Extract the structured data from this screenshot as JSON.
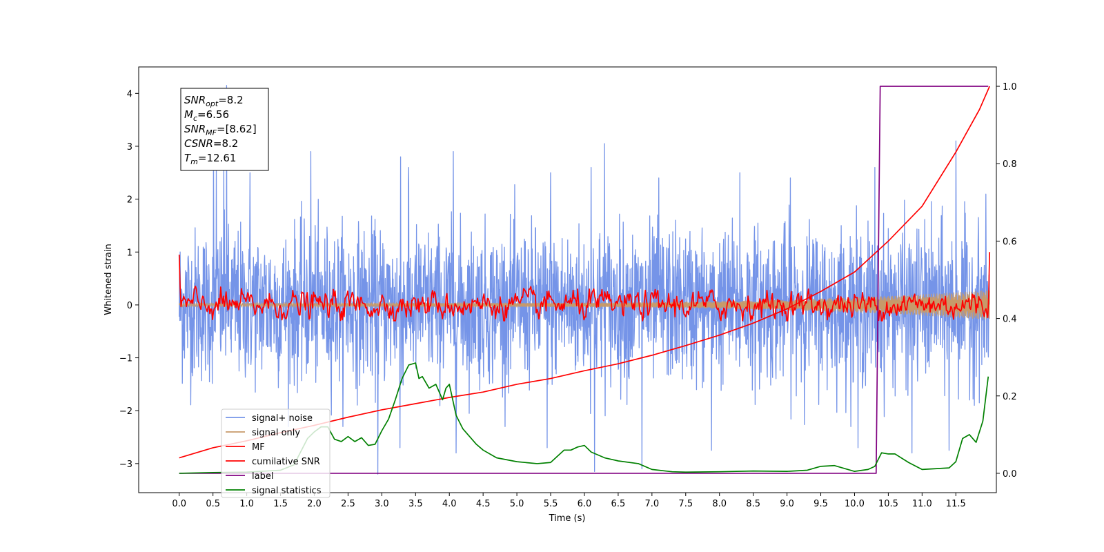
{
  "chart_data": {
    "type": "line",
    "xlabel": "Time (s)",
    "ylabel": "Whitened strain",
    "title": "",
    "xlim": [
      -0.6,
      12.1
    ],
    "ylim": [
      -3.55,
      4.5
    ],
    "y2lim": [
      -0.05,
      1.05
    ],
    "grid": false,
    "legend_placement": "lower-left",
    "x_ticks": [
      0.0,
      0.5,
      1.0,
      1.5,
      2.0,
      2.5,
      3.0,
      3.5,
      4.0,
      4.5,
      5.0,
      5.5,
      6.0,
      6.5,
      7.0,
      7.5,
      8.0,
      8.5,
      9.0,
      9.5,
      10.0,
      10.5,
      11.0,
      11.5
    ],
    "x_tick_labels": [
      "0.0",
      "0.5",
      "1.0",
      "1.5",
      "2.0",
      "2.5",
      "3.0",
      "3.5",
      "4.0",
      "4.5",
      "5.0",
      "5.5",
      "6.0",
      "6.5",
      "7.0",
      "7.5",
      "8.0",
      "8.5",
      "9.0",
      "9.5",
      "10.0",
      "10.5",
      "11.0",
      "11.5"
    ],
    "y_ticks": [
      4,
      3,
      2,
      1,
      0,
      -1,
      -2,
      -3
    ],
    "y_tick_labels": [
      "4",
      "3",
      "2",
      "1",
      "0",
      "−1",
      "−2",
      "−3"
    ],
    "y2_ticks": [
      1.0,
      0.8,
      0.6,
      0.4,
      0.2,
      0.0
    ],
    "y2_tick_labels": [
      "1.0",
      "0.8",
      "0.6",
      "0.4",
      "0.2",
      "0.0"
    ],
    "annotation": [
      {
        "label": "SNR",
        "sub": "opt",
        "value": "=8.2"
      },
      {
        "label": "M",
        "sub": "c",
        "value": "=6.56"
      },
      {
        "label": "SNR",
        "sub": "MF",
        "value": "=[8.62]"
      },
      {
        "label": "CSNR",
        "sub": "",
        "value": "=8.2"
      },
      {
        "label": "T",
        "sub": "m",
        "value": "=12.61"
      }
    ],
    "series": [
      {
        "name": "signal+ noise",
        "color": "#7594e8",
        "axis": "left",
        "kind": "noise",
        "x_range": [
          0.0,
          12.0
        ],
        "typical_envelope": [
          -1.5,
          1.5
        ],
        "peaks": [
          [
            0.51,
            2.9
          ],
          [
            0.55,
            2.6
          ],
          [
            0.66,
            2.7
          ],
          [
            0.7,
            4.15
          ],
          [
            1.05,
            2.5
          ],
          [
            1.95,
            2.9
          ],
          [
            3.28,
            2.8
          ],
          [
            3.4,
            2.6
          ],
          [
            4.06,
            2.9
          ],
          [
            5.5,
            2.5
          ],
          [
            6.1,
            2.6
          ],
          [
            6.3,
            3.05
          ],
          [
            7.1,
            2.4
          ],
          [
            8.3,
            2.5
          ],
          [
            9.05,
            2.4
          ],
          [
            10.3,
            2.6
          ],
          [
            11.5,
            3.1
          ],
          [
            2.94,
            -3.2
          ],
          [
            3.27,
            -2.7
          ],
          [
            4.1,
            -2.8
          ],
          [
            5.45,
            -2.7
          ],
          [
            6.15,
            -3.15
          ],
          [
            6.85,
            -3.1
          ],
          [
            7.88,
            -2.75
          ],
          [
            10.05,
            -2.7
          ],
          [
            10.85,
            -2.8
          ],
          [
            11.4,
            -2.75
          ]
        ]
      },
      {
        "name": "signal only",
        "color": "#c79a6a",
        "axis": "left",
        "kind": "envelope",
        "x": [
          0.0,
          6.0,
          7.0,
          8.0,
          9.0,
          10.0,
          11.0,
          12.0
        ],
        "amplitude": [
          0.03,
          0.04,
          0.05,
          0.07,
          0.1,
          0.14,
          0.2,
          0.28
        ]
      },
      {
        "name": "MF",
        "color": "#ff0000",
        "axis": "left",
        "kind": "oscillation",
        "x_range": [
          0.0,
          12.0
        ],
        "start_value": 0.95,
        "end_value": 1.0,
        "typical_envelope": [
          -0.3,
          0.3
        ]
      },
      {
        "name": "cumilative SNR",
        "color": "#ff0000",
        "axis": "right",
        "x": [
          0.0,
          0.5,
          1.0,
          1.5,
          2.0,
          2.5,
          3.0,
          3.5,
          4.0,
          4.5,
          5.0,
          5.5,
          6.0,
          6.5,
          7.0,
          7.5,
          8.0,
          8.5,
          9.0,
          9.5,
          10.0,
          10.5,
          11.0,
          11.5,
          11.85,
          12.0
        ],
        "values": [
          0.04,
          0.066,
          0.084,
          0.105,
          0.124,
          0.145,
          0.164,
          0.18,
          0.196,
          0.21,
          0.23,
          0.245,
          0.265,
          0.283,
          0.305,
          0.33,
          0.357,
          0.388,
          0.425,
          0.47,
          0.52,
          0.6,
          0.69,
          0.83,
          0.94,
          1.0
        ]
      },
      {
        "name": "label",
        "color": "#800080",
        "axis": "right",
        "x": [
          0.0,
          10.32,
          10.38,
          11.98
        ],
        "values": [
          0.0,
          0.0,
          1.0,
          1.0
        ]
      },
      {
        "name": "signal statistics",
        "color": "#008000",
        "axis": "right",
        "x": [
          0.0,
          0.5,
          1.0,
          1.5,
          1.7,
          1.9,
          2.0,
          2.1,
          2.2,
          2.3,
          2.4,
          2.5,
          2.6,
          2.7,
          2.8,
          2.9,
          3.0,
          3.1,
          3.2,
          3.3,
          3.4,
          3.5,
          3.55,
          3.6,
          3.7,
          3.8,
          3.9,
          3.95,
          4.0,
          4.1,
          4.2,
          4.3,
          4.4,
          4.5,
          4.7,
          5.0,
          5.3,
          5.5,
          5.7,
          5.8,
          5.9,
          6.0,
          6.1,
          6.3,
          6.5,
          6.8,
          7.0,
          7.3,
          7.5,
          8.0,
          8.5,
          9.0,
          9.3,
          9.5,
          9.7,
          10.0,
          10.2,
          10.3,
          10.4,
          10.5,
          10.6,
          10.8,
          11.0,
          11.2,
          11.4,
          11.5,
          11.6,
          11.7,
          11.8,
          11.9,
          11.98
        ],
        "values": [
          0.0,
          0.002,
          0.003,
          0.008,
          0.022,
          0.09,
          0.107,
          0.12,
          0.12,
          0.088,
          0.082,
          0.095,
          0.082,
          0.092,
          0.072,
          0.075,
          0.11,
          0.14,
          0.19,
          0.245,
          0.28,
          0.285,
          0.245,
          0.25,
          0.22,
          0.23,
          0.19,
          0.22,
          0.23,
          0.15,
          0.115,
          0.095,
          0.075,
          0.06,
          0.04,
          0.03,
          0.025,
          0.028,
          0.06,
          0.06,
          0.068,
          0.072,
          0.055,
          0.04,
          0.032,
          0.025,
          0.01,
          0.004,
          0.003,
          0.004,
          0.006,
          0.005,
          0.008,
          0.018,
          0.02,
          0.005,
          0.01,
          0.018,
          0.053,
          0.05,
          0.05,
          0.028,
          0.01,
          0.012,
          0.014,
          0.03,
          0.09,
          0.1,
          0.08,
          0.135,
          0.25
        ]
      }
    ]
  }
}
